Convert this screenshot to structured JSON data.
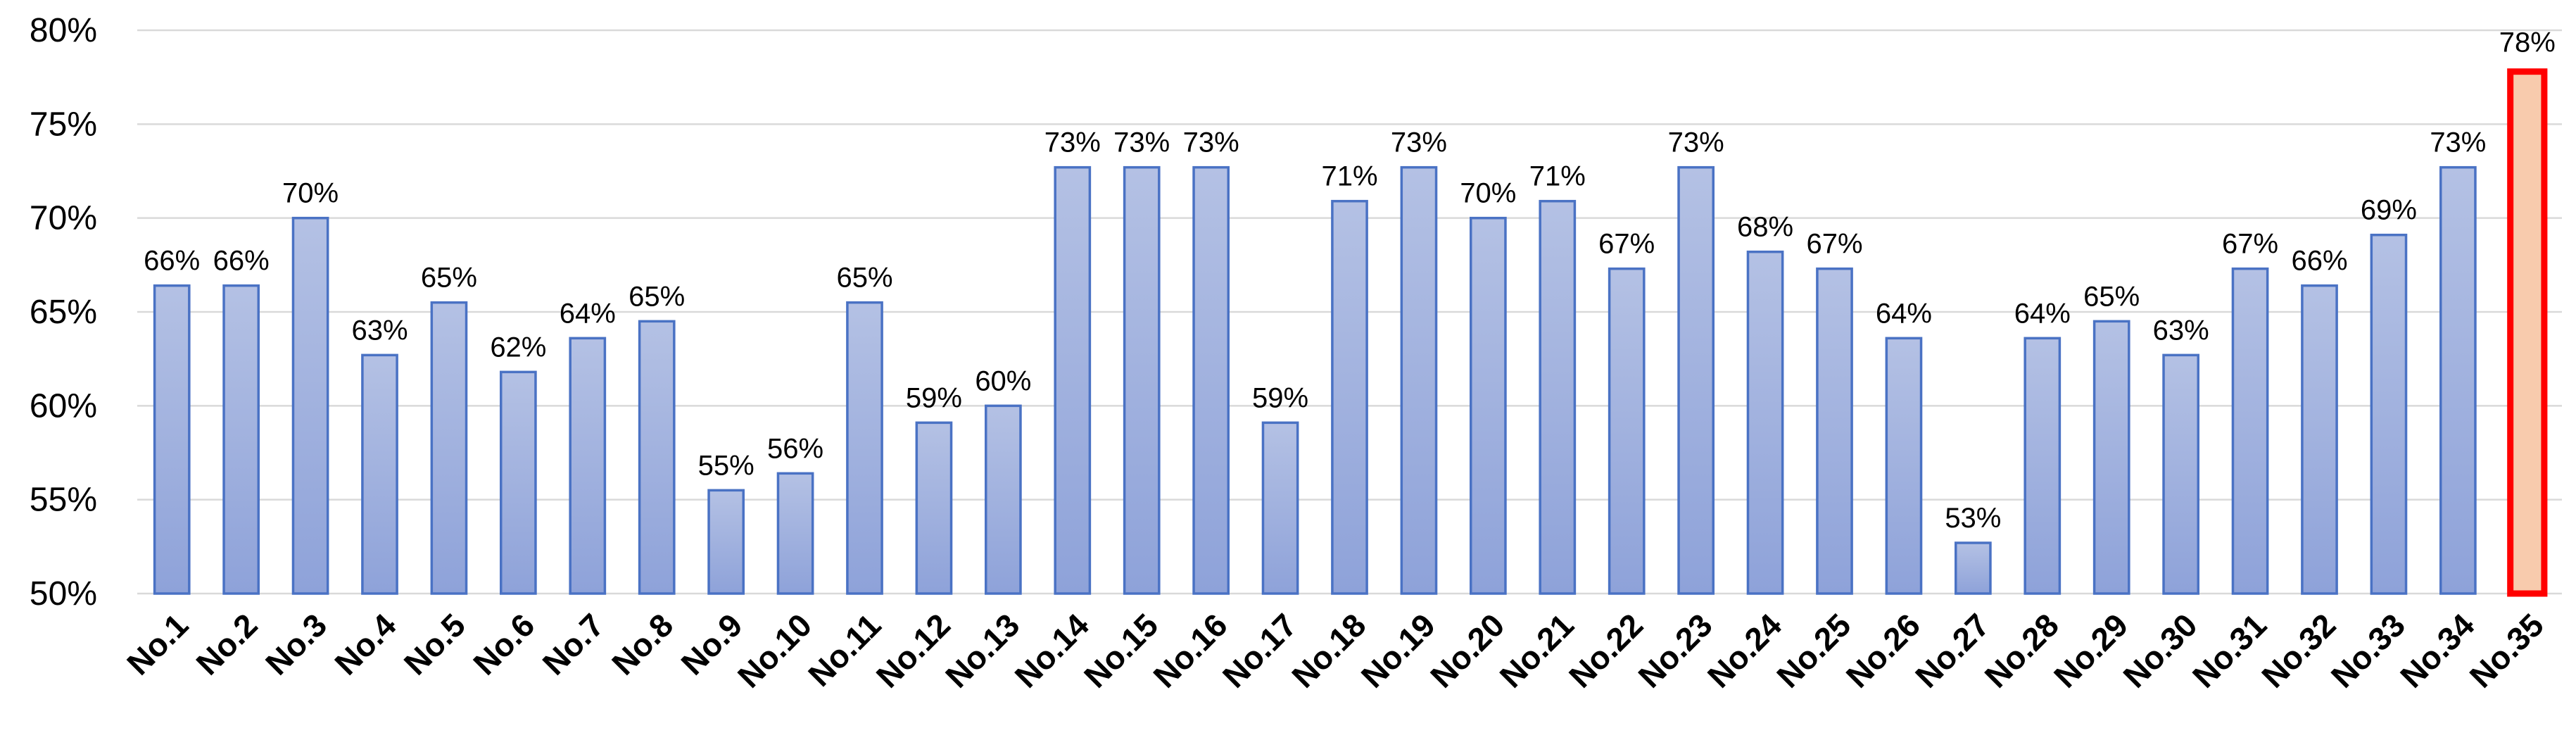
{
  "chart_data": {
    "type": "bar",
    "title": "",
    "xlabel": "",
    "ylabel": "",
    "ylim": [
      0.5,
      0.8
    ],
    "yticks": [
      "50%",
      "55%",
      "60%",
      "65%",
      "70%",
      "75%",
      "80%"
    ],
    "ytick_values": [
      0.5,
      0.55,
      0.6,
      0.65,
      0.7,
      0.75,
      0.8
    ],
    "grid": true,
    "legend": "none",
    "categories": [
      "No.1",
      "No.2",
      "No.3",
      "No.4",
      "No.5",
      "No.6",
      "No.7",
      "No.8",
      "No.9",
      "No.10",
      "No.11",
      "No.12",
      "No.13",
      "No.14",
      "No.15",
      "No.16",
      "No.17",
      "No.18",
      "No.19",
      "No.20",
      "No.21",
      "No.22",
      "No.23",
      "No.24",
      "No.25",
      "No.26",
      "No.27",
      "No.28",
      "No.29",
      "No.30",
      "No.31",
      "No.32",
      "No.33",
      "No.34",
      "No.35"
    ],
    "values": [
      0.664,
      0.664,
      0.7,
      0.627,
      0.655,
      0.618,
      0.636,
      0.645,
      0.555,
      0.564,
      0.655,
      0.591,
      0.6,
      0.727,
      0.727,
      0.727,
      0.591,
      0.709,
      0.727,
      0.7,
      0.709,
      0.673,
      0.727,
      0.682,
      0.673,
      0.636,
      0.527,
      0.636,
      0.645,
      0.627,
      0.673,
      0.664,
      0.691,
      0.727,
      0.778
    ],
    "data_labels": [
      "66%",
      "66%",
      "70%",
      "63%",
      "65%",
      "62%",
      "64%",
      "65%",
      "55%",
      "56%",
      "65%",
      "59%",
      "60%",
      "73%",
      "73%",
      "73%",
      "59%",
      "71%",
      "73%",
      "70%",
      "71%",
      "67%",
      "73%",
      "68%",
      "67%",
      "64%",
      "53%",
      "64%",
      "65%",
      "63%",
      "67%",
      "66%",
      "69%",
      "73%",
      "78%"
    ],
    "highlight_index": 34,
    "colors": {
      "bar_top": "#b4c1e4",
      "bar_bottom": "#8ea2d9",
      "bar_border": "#4a72c4",
      "highlight_fill": "#f8cbad",
      "highlight_border": "#ff0000",
      "grid": "#d9d9d9"
    }
  }
}
